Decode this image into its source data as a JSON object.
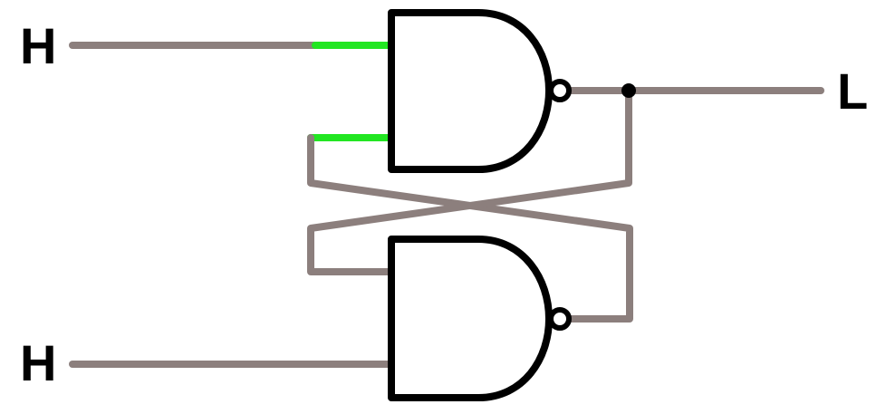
{
  "diagram": {
    "labels": {
      "input_top": "H",
      "input_bottom": "H",
      "output": "L"
    },
    "gates": [
      {
        "name": "nand-gate-top",
        "type": "NAND"
      },
      {
        "name": "nand-gate-bottom",
        "type": "NAND"
      }
    ],
    "colors": {
      "wire_idle": "#8c7f7d",
      "wire_active": "#22e622",
      "gate_outline": "#000000",
      "label_text": "#000000"
    }
  }
}
